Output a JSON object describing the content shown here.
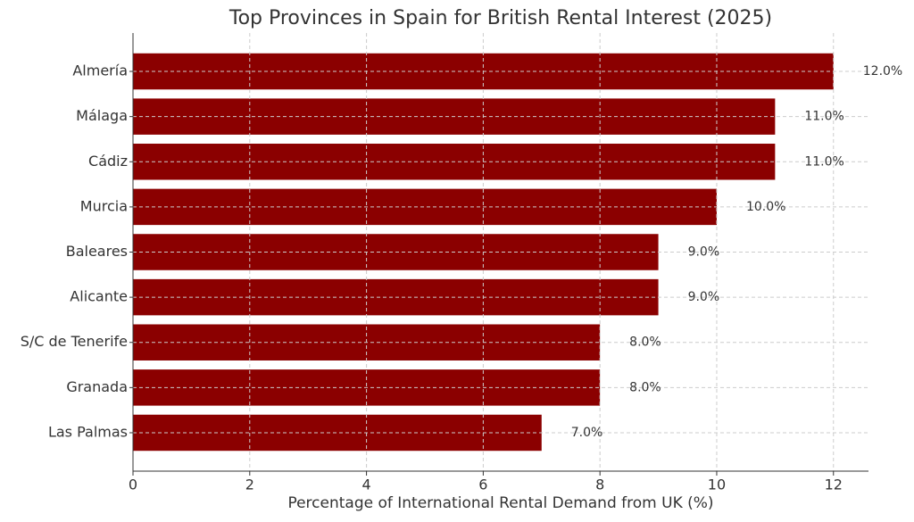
{
  "chart_data": {
    "type": "barh",
    "title": "Top Provinces in Spain for British Rental Interest (2025)",
    "xlabel": "Percentage of International Rental Demand from UK (%)",
    "categories": [
      "Almería",
      "Málaga",
      "Cádiz",
      "Murcia",
      "Baleares",
      "Alicante",
      "S/C de Tenerife",
      "Granada",
      "Las Palmas"
    ],
    "values": [
      12,
      11,
      11,
      10,
      9,
      9,
      8,
      8,
      7
    ],
    "value_labels": [
      "12.0%",
      "11.0%",
      "11.0%",
      "10.0%",
      "9.0%",
      "9.0%",
      "8.0%",
      "8.0%",
      "7.0%"
    ],
    "color": "#8b0000",
    "xlim": [
      0,
      12.6
    ],
    "xticks": [
      0,
      2,
      4,
      6,
      8,
      10,
      12
    ],
    "grid": true
  }
}
